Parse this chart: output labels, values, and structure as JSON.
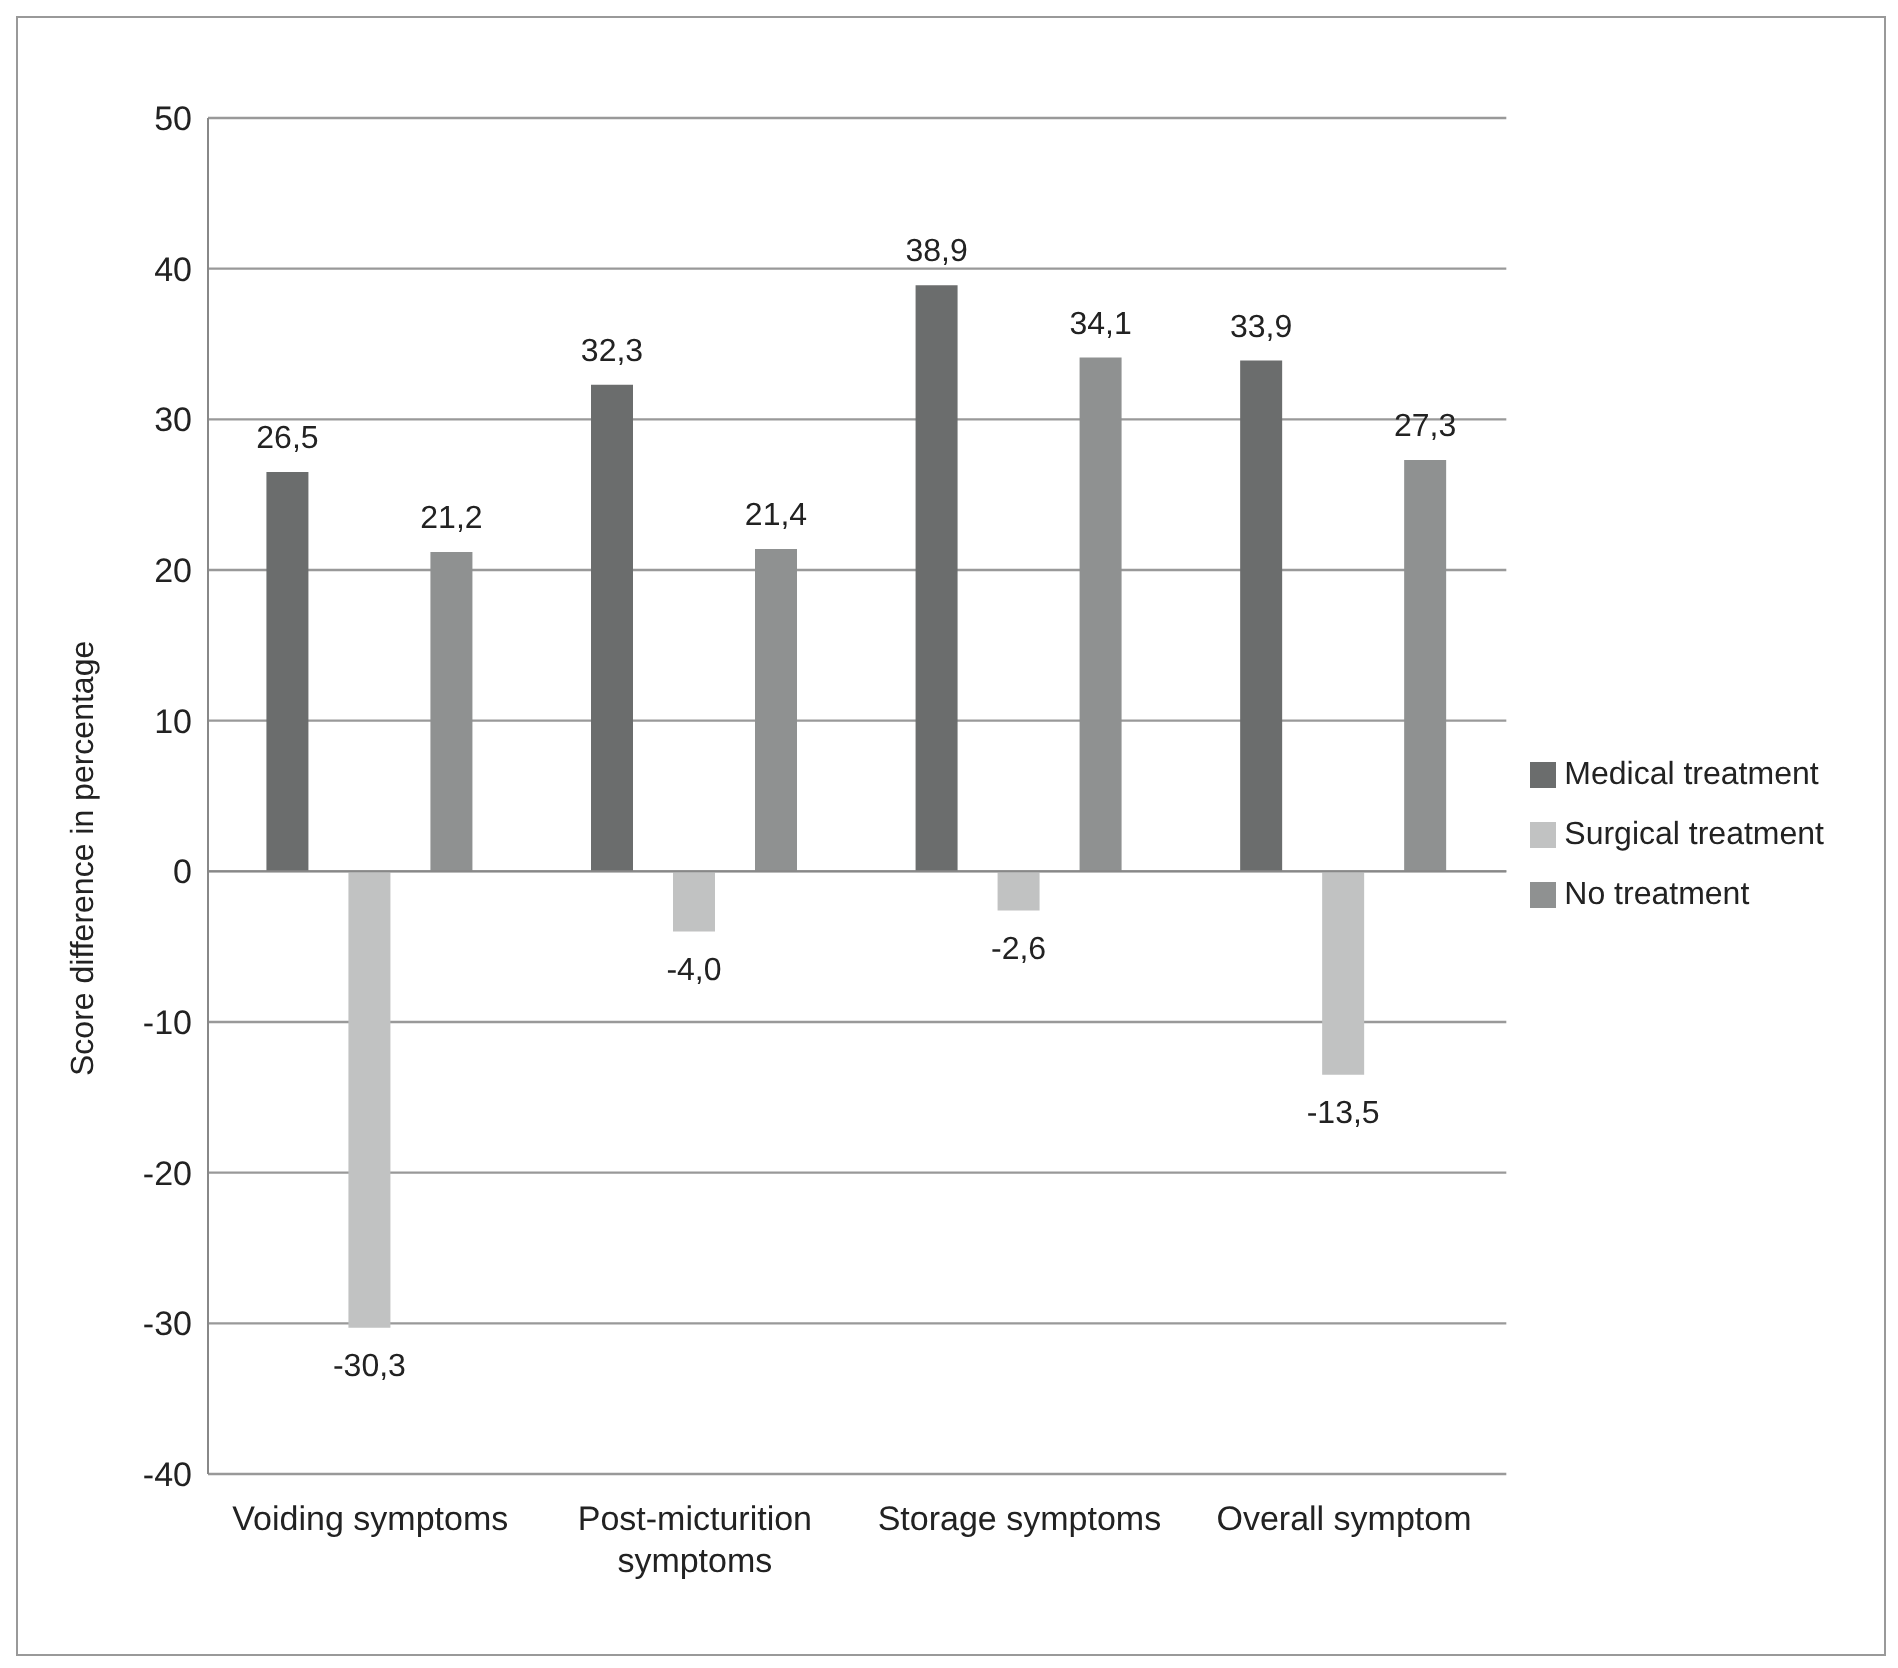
{
  "chart_data": {
    "type": "bar",
    "ylabel": "Score difference in percentage",
    "categories": [
      "Voiding symptoms",
      "Post-micturition symptoms",
      "Storage symptoms",
      "Overall symptom"
    ],
    "series": [
      {
        "name": "Medical treatment",
        "color": "#6b6d6d",
        "values": [
          26.5,
          32.3,
          38.9,
          33.9
        ],
        "value_labels": [
          "26,5",
          "32,3",
          "38,9",
          "33,9"
        ]
      },
      {
        "name": "Surgical treatment",
        "color": "#c1c2c2",
        "values": [
          -30.3,
          -4.0,
          -2.6,
          -13.5
        ],
        "value_labels": [
          "-30,3",
          "-4,0",
          "-2,6",
          "-13,5"
        ]
      },
      {
        "name": "No treatment",
        "color": "#8f9191",
        "values": [
          21.2,
          21.4,
          34.1,
          27.3
        ],
        "value_labels": [
          "21,2",
          "21,4",
          "34,1",
          "27,3"
        ]
      }
    ],
    "ylim": [
      -40,
      50
    ],
    "yticks": [
      -40,
      -30,
      -20,
      -10,
      0,
      10,
      20,
      30,
      40,
      50
    ],
    "grid": "y",
    "legend": "right"
  }
}
